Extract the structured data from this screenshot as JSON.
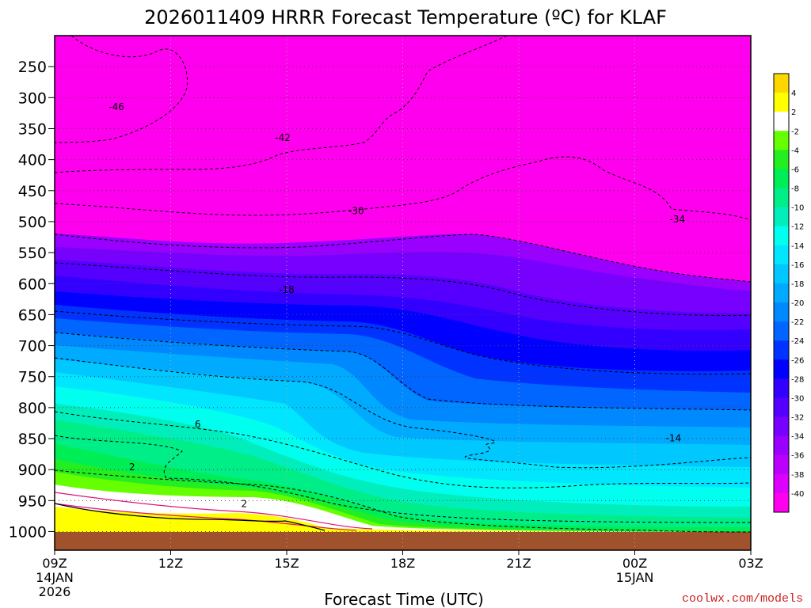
{
  "chart_data": {
    "type": "heatmap",
    "title": "2026011409 HRRR Forecast Temperature (ºC) for KLAF",
    "xlabel": "Forecast Time (UTC)",
    "ylabel": "",
    "credit": "coolwx.com/models",
    "x_ticks": [
      {
        "hours": 0,
        "lines": [
          "09Z",
          "14JAN",
          "2026"
        ]
      },
      {
        "hours": 3,
        "lines": [
          "12Z"
        ]
      },
      {
        "hours": 6,
        "lines": [
          "15Z"
        ]
      },
      {
        "hours": 9,
        "lines": [
          "18Z"
        ]
      },
      {
        "hours": 12,
        "lines": [
          "21Z"
        ]
      },
      {
        "hours": 15,
        "lines": [
          "00Z",
          "15JAN"
        ]
      },
      {
        "hours": 18,
        "lines": [
          "03Z"
        ]
      }
    ],
    "y_ticks": [
      250,
      300,
      350,
      400,
      450,
      500,
      550,
      600,
      650,
      700,
      750,
      800,
      850,
      900,
      950,
      1000
    ],
    "x_range_hours": [
      0,
      18
    ],
    "y_range_hPa": [
      200,
      1030
    ],
    "grid": true,
    "legend_position": "right",
    "color_levels": [
      {
        "label": "",
        "color": "#ffd700"
      },
      {
        "label": "4",
        "color": "#ffff00"
      },
      {
        "label": "2",
        "color": "#ffffff"
      },
      {
        "label": "-2",
        "color": "#66ff00"
      },
      {
        "label": "-4",
        "color": "#22ee22"
      },
      {
        "label": "-6",
        "color": "#00ee55"
      },
      {
        "label": "-8",
        "color": "#00ee88"
      },
      {
        "label": "-10",
        "color": "#00eebb"
      },
      {
        "label": "-12",
        "color": "#00ffee"
      },
      {
        "label": "-14",
        "color": "#00e6ff"
      },
      {
        "label": "-16",
        "color": "#00c8ff"
      },
      {
        "label": "-18",
        "color": "#00aaff"
      },
      {
        "label": "-20",
        "color": "#0088ff"
      },
      {
        "label": "-22",
        "color": "#0066ff"
      },
      {
        "label": "-24",
        "color": "#0033ff"
      },
      {
        "label": "-26",
        "color": "#0000ff"
      },
      {
        "label": "-28",
        "color": "#3300ff"
      },
      {
        "label": "-30",
        "color": "#5500ff"
      },
      {
        "label": "-32",
        "color": "#7700ff"
      },
      {
        "label": "-34",
        "color": "#9900ff"
      },
      {
        "label": "-36",
        "color": "#bb00ff"
      },
      {
        "label": "-38",
        "color": "#dd00ff"
      },
      {
        "label": "-40",
        "color": "#ff00ee"
      }
    ],
    "contour_labels": [
      {
        "text": "-46",
        "hours": 1.6,
        "hPa": 315
      },
      {
        "text": "-42",
        "hours": 5.9,
        "hPa": 365
      },
      {
        "text": "-30",
        "hours": 7.8,
        "hPa": 483
      },
      {
        "text": "-34",
        "hours": 16.1,
        "hPa": 496
      },
      {
        "text": "-18",
        "hours": 6.0,
        "hPa": 610
      },
      {
        "text": "6",
        "hours": 3.7,
        "hPa": 827
      },
      {
        "text": "-14",
        "hours": 16.0,
        "hPa": 849
      },
      {
        "text": "2",
        "hours": 2.0,
        "hPa": 896
      },
      {
        "text": "2",
        "hours": 4.9,
        "hPa": 955
      }
    ],
    "ground_color": "#a0522d"
  }
}
